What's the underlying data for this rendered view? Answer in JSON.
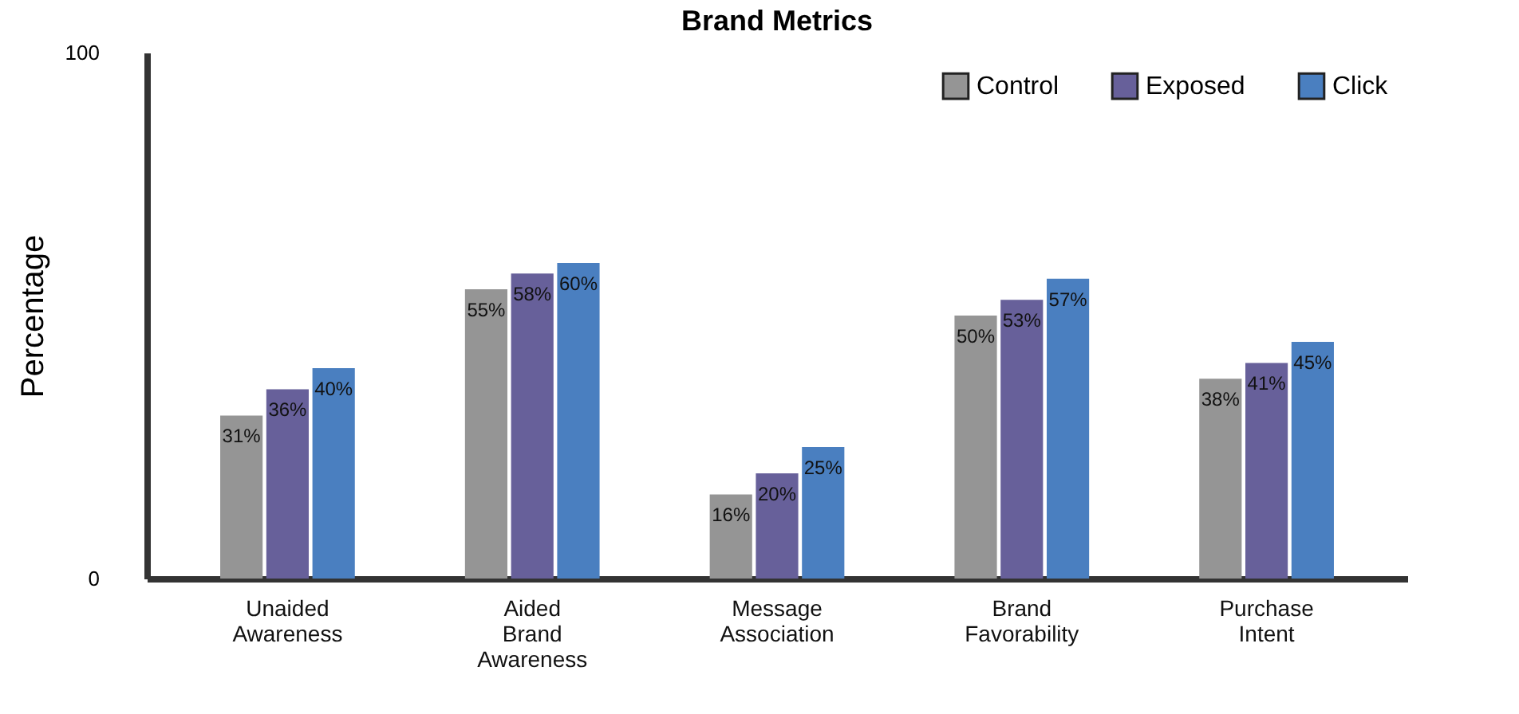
{
  "chart_data": {
    "type": "bar",
    "title": "Brand Metrics",
    "ylabel": "Percentage",
    "categories": [
      "Unaided Awareness",
      "Aided Brand Awareness",
      "Message Association",
      "Brand Favorability",
      "Purchase Intent"
    ],
    "series": [
      {
        "name": "Control",
        "color": "#959595",
        "values": [
          31,
          55,
          16,
          50,
          38
        ]
      },
      {
        "name": "Exposed",
        "color": "#67609a",
        "values": [
          36,
          58,
          20,
          53,
          41
        ]
      },
      {
        "name": "Click",
        "color": "#4a7fc0",
        "values": [
          40,
          60,
          25,
          57,
          45
        ]
      }
    ],
    "value_labels": [
      [
        "31%",
        "55%",
        "16%",
        "50%",
        "38%"
      ],
      [
        "36%",
        "58%",
        "20%",
        "53%",
        "41%"
      ],
      [
        "40%",
        "60%",
        "25%",
        "57%",
        "45%"
      ]
    ],
    "ylim": [
      0,
      100
    ],
    "yticks": [
      0,
      100
    ],
    "grid": false,
    "legend": "top right"
  }
}
